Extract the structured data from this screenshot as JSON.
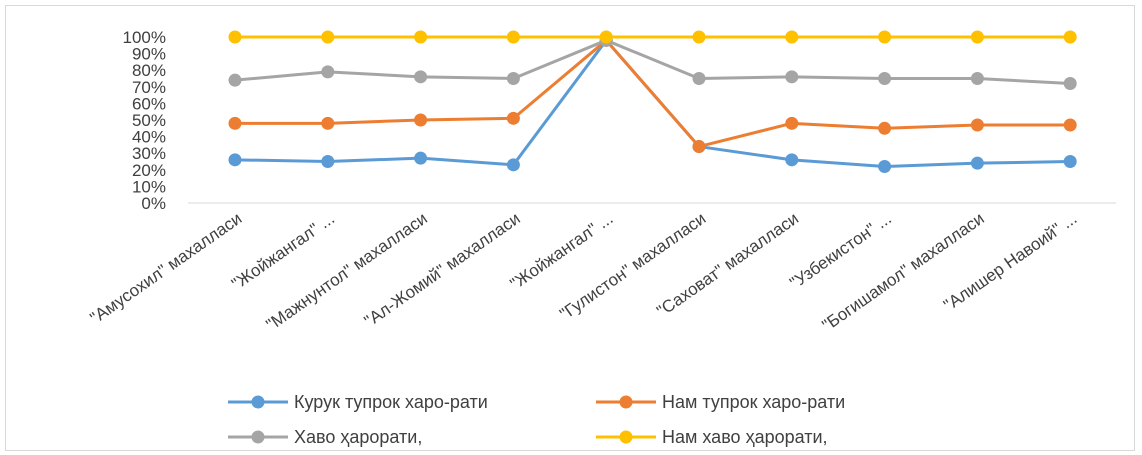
{
  "chart_data": {
    "type": "line",
    "title": "",
    "xlabel": "",
    "ylabel": "",
    "ylim": [
      0,
      100
    ],
    "y_ticks": [
      "0%",
      "10%",
      "20%",
      "30%",
      "40%",
      "50%",
      "60%",
      "70%",
      "80%",
      "90%",
      "100%"
    ],
    "y_tick_values": [
      0,
      10,
      20,
      30,
      40,
      50,
      60,
      70,
      80,
      90,
      100
    ],
    "grid": false,
    "legend_position": "bottom",
    "categories": [
      "\"Амусохил\" махалласи",
      "\"Жойжангал\" ...",
      "\"Мажнунтол\" махалласи",
      "\"Ал-Жомий\" махалласи",
      "\"Жойжангал\" ...",
      "\"Гулистон\" махалласи",
      "\"Саховат\" махалласи",
      "\"Узбекистон\" ...",
      "\"Богишамол\" махалласи",
      "\"Алишер Навоий\" ..."
    ],
    "series": [
      {
        "name": "Курук тупрок харо-рати",
        "color": "#5b9bd5",
        "values": [
          26,
          25,
          27,
          23,
          98,
          34,
          26,
          22,
          24,
          25
        ]
      },
      {
        "name": "Нам тупрок харо-рати",
        "color": "#ed7d31",
        "values": [
          48,
          48,
          50,
          51,
          98,
          34,
          48,
          45,
          47,
          47
        ]
      },
      {
        "name": "Хаво ҳарорати,",
        "color": "#a5a5a5",
        "values": [
          74,
          79,
          76,
          75,
          98,
          75,
          76,
          75,
          75,
          72
        ]
      },
      {
        "name": "Нам хаво ҳарорати,",
        "color": "#ffc000",
        "values": [
          100,
          100,
          100,
          100,
          100,
          100,
          100,
          100,
          100,
          100
        ]
      }
    ]
  }
}
